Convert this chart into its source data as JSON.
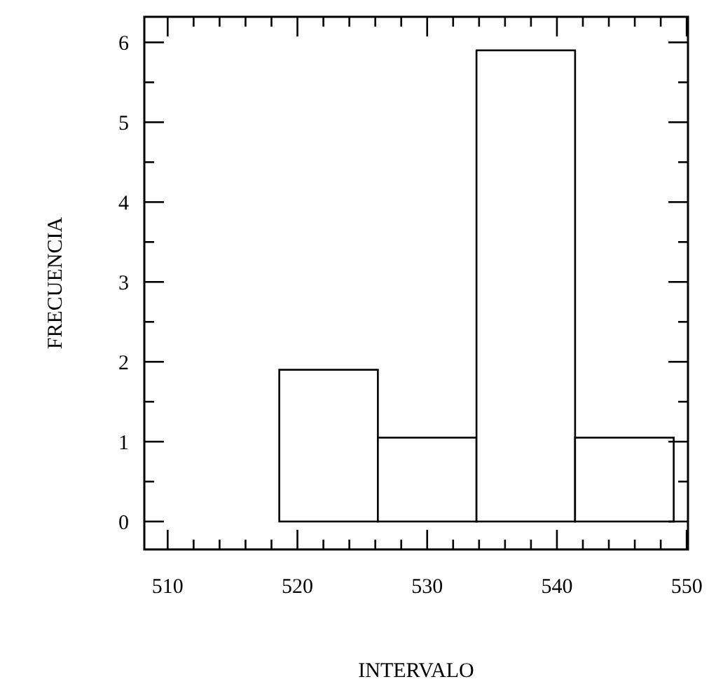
{
  "chart_data": {
    "type": "histogram",
    "xlabel": "INTERVALO",
    "ylabel": "FRECUENCIA",
    "bins": [
      518.6,
      526.2,
      533.8,
      541.4,
      549.0
    ],
    "values": [
      1.9,
      1.05,
      5.9,
      1.05
    ],
    "color": "#ffffff",
    "xlim": [
      508.2,
      550.1
    ],
    "ylim": [
      -0.35,
      6.32
    ],
    "xticks": [
      510,
      {
        "value": 512,
        "label": null
      },
      {
        "value": 514,
        "label": null
      },
      {
        "value": 516,
        "label": null
      },
      {
        "value": 518,
        "label": null
      },
      520,
      {
        "value": 522,
        "label": null
      },
      {
        "value": 524,
        "label": null
      },
      {
        "value": 526,
        "label": null
      },
      {
        "value": 528,
        "label": null
      },
      530,
      {
        "value": 532,
        "label": null
      },
      {
        "value": 534,
        "label": null
      },
      {
        "value": 536,
        "label": null
      },
      {
        "value": 538,
        "label": null
      },
      540,
      {
        "value": 542,
        "label": null
      },
      {
        "value": 544,
        "label": null
      },
      {
        "value": 546,
        "label": null
      },
      {
        "value": 548,
        "label": null
      },
      550
    ],
    "yticks": [
      0,
      {
        "value": 0.5,
        "label": null
      },
      1,
      {
        "value": 1.5,
        "label": null
      },
      2,
      {
        "value": 2.5,
        "label": null
      },
      3,
      {
        "value": 3.5,
        "label": null
      },
      4,
      {
        "value": 4.5,
        "label": null
      },
      5,
      {
        "value": 5.5,
        "label": null
      },
      6
    ],
    "grid": false
  }
}
